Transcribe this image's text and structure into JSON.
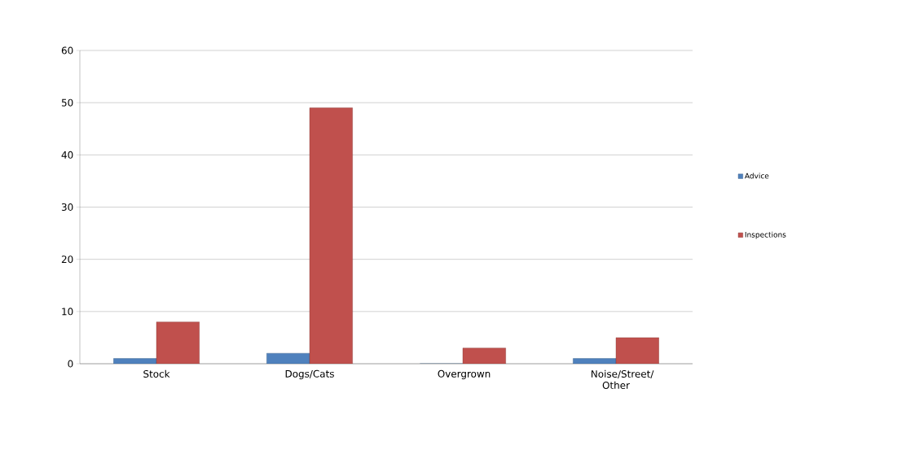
{
  "chart_data": {
    "type": "bar",
    "categories": [
      "Stock",
      "Dogs/Cats",
      "Overgrown",
      "Noise/Street/ Other"
    ],
    "series": [
      {
        "name": "Advice",
        "color": "#4f81bd",
        "values": [
          1,
          2,
          0,
          1
        ]
      },
      {
        "name": "Inspections",
        "color": "#c0504d",
        "values": [
          8,
          49,
          3,
          5
        ]
      }
    ],
    "ylim": [
      0,
      60
    ],
    "yticks": [
      0,
      10,
      20,
      30,
      40,
      50,
      60
    ],
    "grid": "y",
    "legend": "right"
  }
}
